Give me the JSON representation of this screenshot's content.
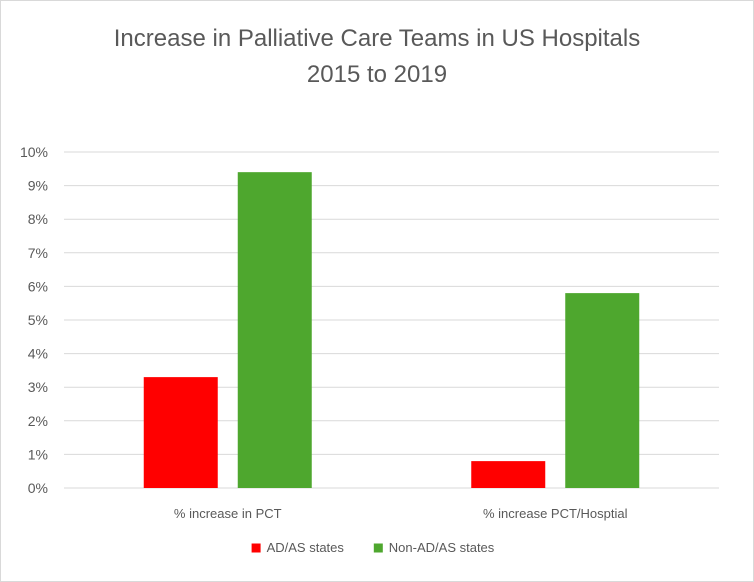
{
  "chart_data": {
    "type": "bar",
    "title": "Increase in Palliative Care Teams in US Hospitals",
    "subtitle": "2015 to 2019",
    "categories": [
      "% increase in PCT",
      "% increase PCT/Hosptial"
    ],
    "series": [
      {
        "name": "AD/AS states",
        "values": [
          3.3,
          0.8
        ],
        "color": "#ff0000"
      },
      {
        "name": "Non-AD/AS states",
        "values": [
          9.4,
          5.8
        ],
        "color": "#4ea72e"
      }
    ],
    "yticks": [
      "0%",
      "1%",
      "2%",
      "3%",
      "4%",
      "5%",
      "6%",
      "7%",
      "8%",
      "9%",
      "10%"
    ],
    "ylim": [
      0,
      10
    ],
    "grid": true,
    "legend_position": "bottom"
  }
}
